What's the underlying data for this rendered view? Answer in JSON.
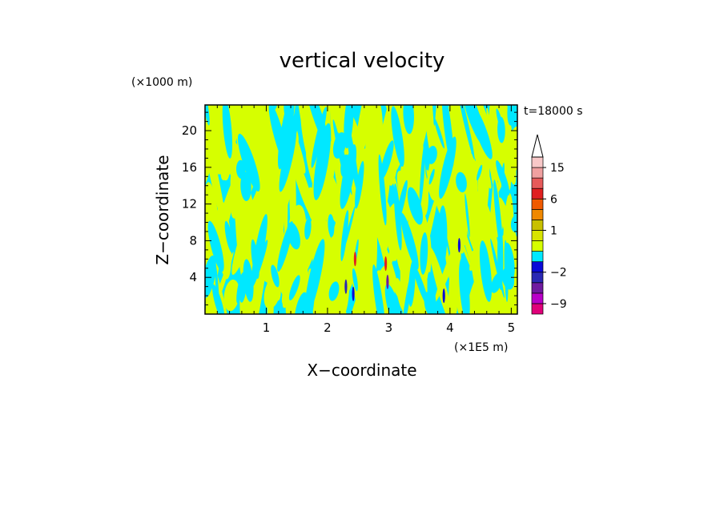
{
  "chart_data": {
    "type": "heatmap",
    "title": "vertical velocity",
    "xlabel": "X−coordinate",
    "ylabel": "Z−coordinate",
    "x_unit": "(×1E5 m)",
    "y_unit": "(×1000 m)",
    "time_label": "t=18000 s",
    "xlim": [
      0,
      5.1
    ],
    "ylim": [
      0,
      22.8
    ],
    "xticks": [
      1,
      2,
      3,
      4,
      5
    ],
    "xtick_labels": [
      "1",
      "2",
      "3",
      "4",
      "5"
    ],
    "yticks": [
      4,
      8,
      12,
      16,
      20
    ],
    "ytick_labels": [
      "4",
      "8",
      "12",
      "16",
      "20"
    ],
    "colorbar": {
      "levels": [
        -12,
        -9,
        -6,
        -4,
        -2,
        -1,
        0,
        0.5,
        1,
        2,
        4,
        6,
        9,
        12,
        15,
        20
      ],
      "colors": [
        "#e0007a",
        "#b900c8",
        "#6f1aa0",
        "#2a28b4",
        "#0a0ad8",
        "#00e8ff",
        "#d6ff00",
        "#d8e400",
        "#c8c000",
        "#f08800",
        "#f05a00",
        "#e02020",
        "#e65a5a",
        "#f0a0a0",
        "#f8c8c8"
      ],
      "tick_values": [
        -9,
        -2,
        1,
        6,
        15
      ],
      "tick_labels": [
        "−9",
        "−2",
        "1",
        "6",
        "15"
      ],
      "extend": "max"
    },
    "field_description_colors": {
      "updraft_weak": "#d6ff00",
      "downdraft_weak": "#00e8ff"
    }
  }
}
